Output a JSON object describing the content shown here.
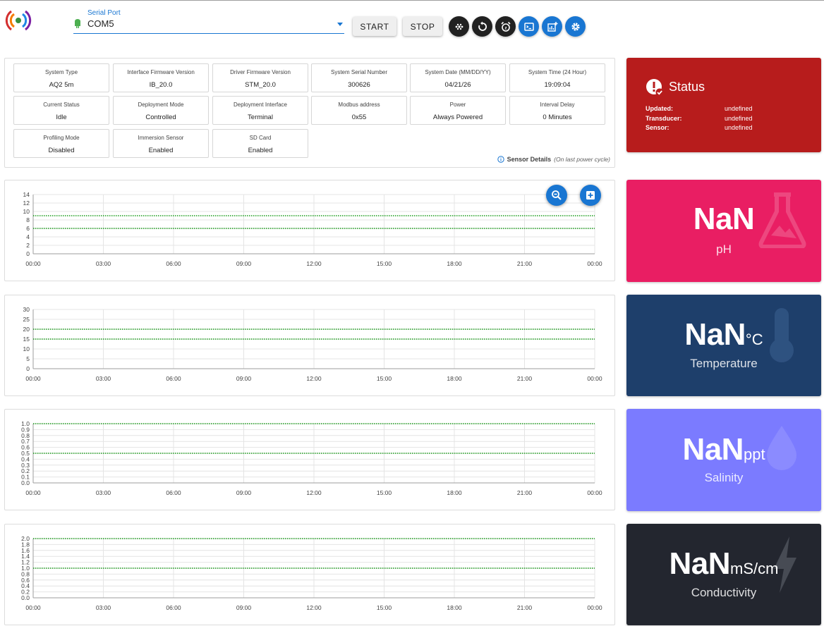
{
  "header": {
    "serial_port_label": "Serial Port",
    "serial_port_value": "COM5",
    "start_label": "START",
    "stop_label": "STOP",
    "icon_buttons": [
      "fitbit-dots-icon",
      "restart-icon",
      "alarm-icon",
      "terminal-icon",
      "chart-add-icon",
      "settings-gear-icon"
    ]
  },
  "info": {
    "cells": [
      {
        "label": "System Type",
        "value": "AQ2 5m"
      },
      {
        "label": "Interface Firmware Version",
        "value": "IB_20.0"
      },
      {
        "label": "Driver Firmware Version",
        "value": "STM_20.0"
      },
      {
        "label": "System Serial Number",
        "value": "300626"
      },
      {
        "label": "System Date (MM/DD/YY)",
        "value": "04/21/26"
      },
      {
        "label": "System Time (24 Hour)",
        "value": "19:09:04"
      },
      {
        "label": "Current Status",
        "value": "Idle"
      },
      {
        "label": "Deployment Mode",
        "value": "Controlled"
      },
      {
        "label": "Deployment Interface",
        "value": "Terminal"
      },
      {
        "label": "Modbus address",
        "value": "0x55"
      },
      {
        "label": "Power",
        "value": "Always Powered"
      },
      {
        "label": "Interval Delay",
        "value": "0 Minutes"
      },
      {
        "label": "Profiling Mode",
        "value": "Disabled"
      },
      {
        "label": "Immersion Sensor",
        "value": "Enabled"
      },
      {
        "label": "SD Card",
        "value": "Enabled"
      }
    ],
    "details_label": "Sensor Details",
    "details_note": "(On last power cycle)"
  },
  "status": {
    "title": "Status",
    "rows": [
      {
        "key": "Updated:",
        "value": "undefined"
      },
      {
        "key": "Transducer:",
        "value": "undefined"
      },
      {
        "key": "Sensor:",
        "value": "undefined"
      }
    ],
    "color": "#b71c1c"
  },
  "readings": [
    {
      "value": "NaN",
      "unit": "",
      "label": "pH",
      "color": "#e91e63",
      "icon": "flask-icon"
    },
    {
      "value": "NaN",
      "unit": "°C",
      "label": "Temperature",
      "color": "#1e3f6b",
      "icon": "thermometer-icon"
    },
    {
      "value": "NaN",
      "unit": "ppt",
      "label": "Salinity",
      "color": "#7b7bff",
      "icon": "water-drop-icon"
    },
    {
      "value": "NaN",
      "unit": "mS/cm",
      "label": "Conductivity",
      "color": "#23262f",
      "icon": "lightning-icon"
    }
  ],
  "chart_data": [
    {
      "type": "line",
      "x": [
        "00:00",
        "03:00",
        "06:00",
        "09:00",
        "12:00",
        "15:00",
        "18:00",
        "21:00",
        "00:00"
      ],
      "yticks": [
        0,
        2,
        4,
        6,
        8,
        10,
        12,
        14
      ],
      "ylim": [
        0,
        14
      ],
      "threshold_lines": [
        9,
        6
      ],
      "grid": true
    },
    {
      "type": "line",
      "x": [
        "00:00",
        "03:00",
        "06:00",
        "09:00",
        "12:00",
        "15:00",
        "18:00",
        "21:00",
        "00:00"
      ],
      "yticks": [
        0,
        5,
        10,
        15,
        20,
        25,
        30
      ],
      "ylim": [
        0,
        30
      ],
      "threshold_lines": [
        20,
        15
      ],
      "grid": true
    },
    {
      "type": "line",
      "x": [
        "00:00",
        "03:00",
        "06:00",
        "09:00",
        "12:00",
        "15:00",
        "18:00",
        "21:00",
        "00:00"
      ],
      "yticks": [
        0,
        0.1,
        0.2,
        0.3,
        0.4,
        0.5,
        0.6,
        0.7,
        0.8,
        0.9,
        1.0
      ],
      "ylim": [
        0,
        1.0
      ],
      "threshold_lines": [
        1.0,
        0.5
      ],
      "grid": true
    },
    {
      "type": "line",
      "x": [
        "00:00",
        "03:00",
        "06:00",
        "09:00",
        "12:00",
        "15:00",
        "18:00",
        "21:00",
        "00:00"
      ],
      "yticks": [
        0,
        0.2,
        0.4,
        0.6,
        0.8,
        1.0,
        1.2,
        1.4,
        1.6,
        1.8,
        2.0
      ],
      "ylim": [
        0,
        2.0
      ],
      "threshold_lines": [
        2.0,
        1.0
      ],
      "grid": true
    }
  ],
  "chart_controls": {
    "zoom_out": "zoom-out-icon",
    "add": "add-box-icon"
  }
}
